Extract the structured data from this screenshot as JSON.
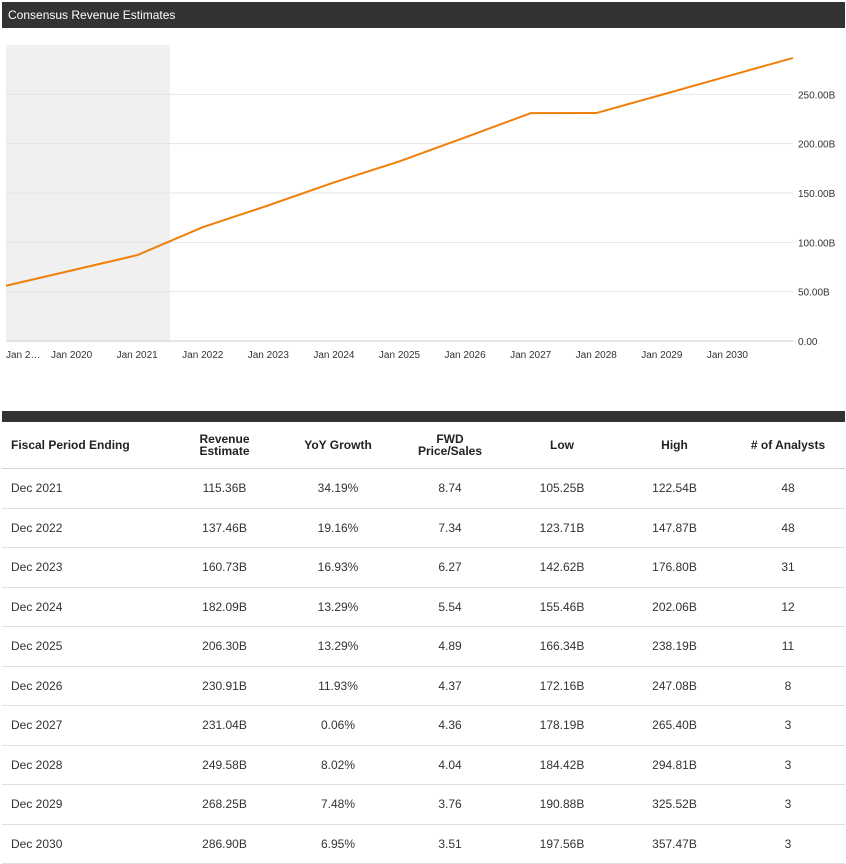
{
  "header": {
    "title": "Consensus Revenue Estimates"
  },
  "chart_data": {
    "type": "line",
    "x_tick_labels": [
      "Jan 2…",
      "Jan 2020",
      "Jan 2021",
      "Jan 2022",
      "Jan 2023",
      "Jan 2024",
      "Jan 2025",
      "Jan 2026",
      "Jan 2027",
      "Jan 2028",
      "Jan 2029",
      "Jan 2030"
    ],
    "y_tick_labels": [
      "0.00",
      "50.00B",
      "100.00B",
      "150.00B",
      "200.00B",
      "250.00B"
    ],
    "y_ticks": [
      0,
      50,
      100,
      150,
      200,
      250
    ],
    "ylim": [
      0,
      300
    ],
    "xlim": [
      2019.0,
      2031.0
    ],
    "shaded_region": [
      2019.0,
      2021.5
    ],
    "grid": true,
    "series": [
      {
        "color": "#f07f09",
        "x": [
          2019.0,
          2021.0,
          2022.0,
          2023.0,
          2024.0,
          2025.0,
          2026.0,
          2027.0,
          2028.0,
          2029.0,
          2030.0,
          2031.0
        ],
        "values": [
          56,
          87,
          115.36,
          137.46,
          160.73,
          182.09,
          206.3,
          230.91,
          231.04,
          249.58,
          268.25,
          286.9
        ]
      }
    ]
  },
  "table": {
    "headers": [
      "Fiscal Period Ending",
      "Revenue Estimate",
      "YoY Growth",
      "FWD Price/Sales",
      "Low",
      "High",
      "# of Analysts"
    ],
    "rows": [
      [
        "Dec 2021",
        "115.36B",
        "34.19%",
        "8.74",
        "105.25B",
        "122.54B",
        "48"
      ],
      [
        "Dec 2022",
        "137.46B",
        "19.16%",
        "7.34",
        "123.71B",
        "147.87B",
        "48"
      ],
      [
        "Dec 2023",
        "160.73B",
        "16.93%",
        "6.27",
        "142.62B",
        "176.80B",
        "31"
      ],
      [
        "Dec 2024",
        "182.09B",
        "13.29%",
        "5.54",
        "155.46B",
        "202.06B",
        "12"
      ],
      [
        "Dec 2025",
        "206.30B",
        "13.29%",
        "4.89",
        "166.34B",
        "238.19B",
        "11"
      ],
      [
        "Dec 2026",
        "230.91B",
        "11.93%",
        "4.37",
        "172.16B",
        "247.08B",
        "8"
      ],
      [
        "Dec 2027",
        "231.04B",
        "0.06%",
        "4.36",
        "178.19B",
        "265.40B",
        "3"
      ],
      [
        "Dec 2028",
        "249.58B",
        "8.02%",
        "4.04",
        "184.42B",
        "294.81B",
        "3"
      ],
      [
        "Dec 2029",
        "268.25B",
        "7.48%",
        "3.76",
        "190.88B",
        "325.52B",
        "3"
      ],
      [
        "Dec 2030",
        "286.90B",
        "6.95%",
        "3.51",
        "197.56B",
        "357.47B",
        "3"
      ]
    ]
  }
}
